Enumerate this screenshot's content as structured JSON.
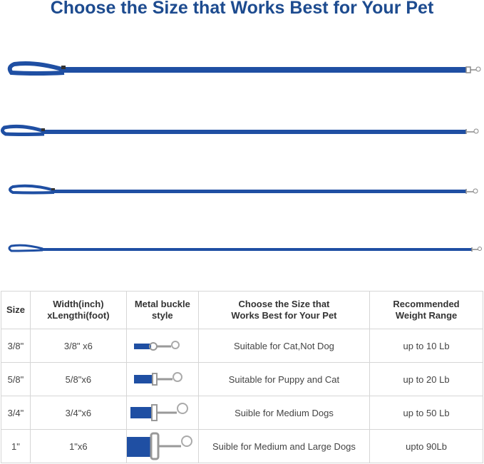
{
  "title": "Choose the Size that Works Best for Your Pet",
  "leash_color": "#1f4fa3",
  "table": {
    "headers": [
      "Size",
      "Width(inch) xLengthi(foot)",
      "Metal buckle style",
      "Choose the Size that Works Best for Your Pet",
      "Recommended Weight Range"
    ],
    "rows": [
      {
        "size": "3/8\"",
        "dimensions": "3/8\" x6",
        "suitability": "Suitable for Cat,Not Dog",
        "weight": "up to 10 Lb"
      },
      {
        "size": "5/8\"",
        "dimensions": "5/8\"x6",
        "suitability": "Suitable for Puppy and Cat",
        "weight": "up to 20 Lb"
      },
      {
        "size": "3/4\"",
        "dimensions": "3/4\"x6",
        "suitability": "Suible for Medium Dogs",
        "weight": "up to 50 Lb"
      },
      {
        "size": "1\"",
        "dimensions": "1\"x6",
        "suitability": "Suible for Medium and Large Dogs",
        "weight": "upto 90Lb"
      }
    ]
  }
}
